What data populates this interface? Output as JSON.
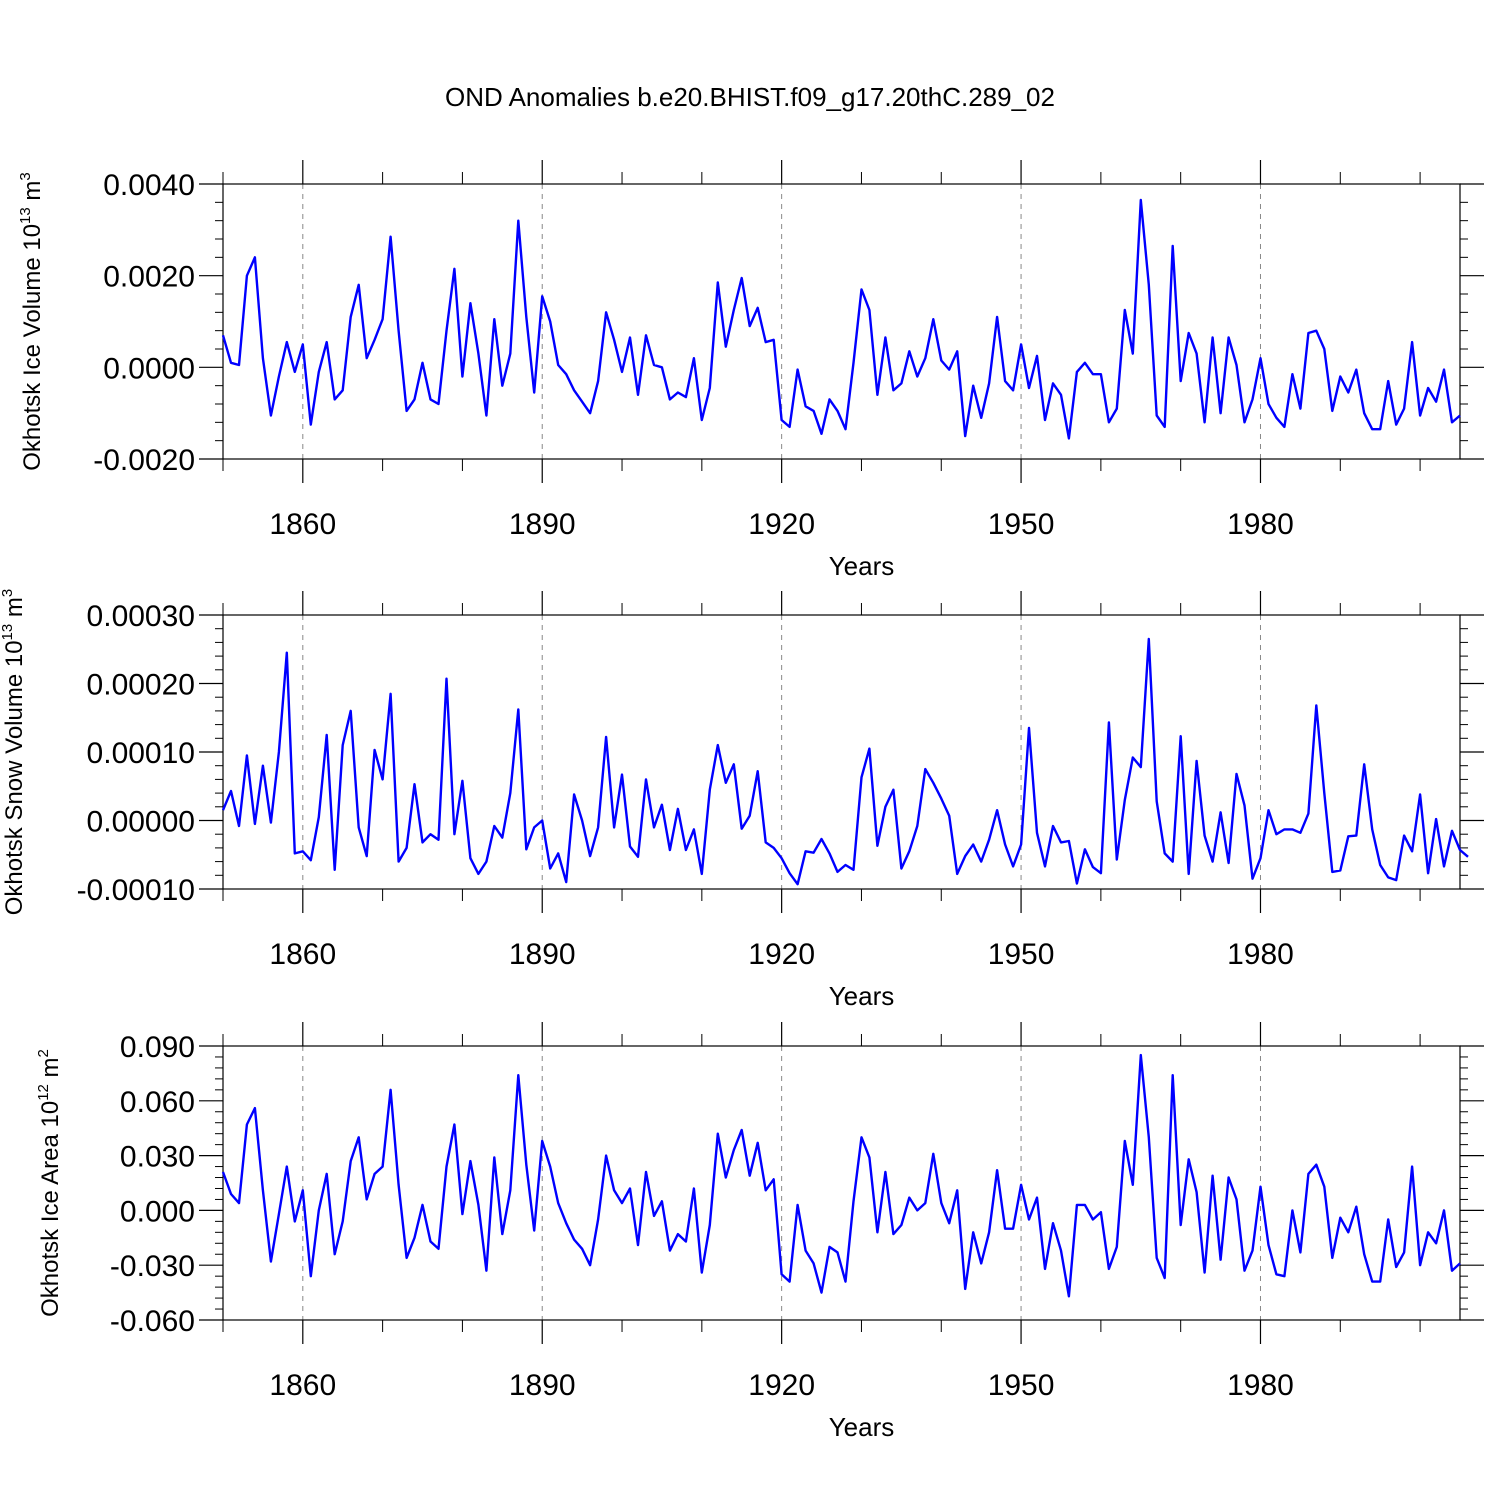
{
  "title": "OND Anomalies b.e20.BHIST.f09_g17.20thC.289_02",
  "colors": {
    "line": "#0000ff",
    "axis": "#000000",
    "grid": "#888888"
  },
  "chart_data": [
    {
      "type": "line",
      "title": "",
      "xlabel": "Years",
      "ylabel_main": "Okhotsk Ice Volume 10",
      "ylabel_exp": "13",
      "ylabel_unit": " m",
      "ylabel_unit_exp": "3",
      "xlim": [
        1850,
        2005
      ],
      "ylim": [
        -0.002,
        0.004
      ],
      "yticks": [
        -0.002,
        0.0,
        0.002,
        0.004
      ],
      "yticklabels": [
        "-0.0020",
        "0.0000",
        "0.0020",
        "0.0040"
      ],
      "xticks": [
        1860,
        1890,
        1920,
        1950,
        1980
      ],
      "xticklabels": [
        "1860",
        "1890",
        "1920",
        "1950",
        "1980"
      ],
      "x_start": 1850,
      "series": [
        {
          "name": "Okhotsk Ice Volume",
          "values": [
            0.0007,
            0.0001,
            5e-05,
            0.002,
            0.0024,
            0.0002,
            -0.00105,
            -0.0002,
            0.00055,
            -0.0001,
            0.0005,
            -0.00125,
            -0.0001,
            0.00055,
            -0.0007,
            -0.0005,
            0.0011,
            0.0018,
            0.0002,
            0.0006,
            0.00105,
            0.00285,
            0.0008,
            -0.00095,
            -0.0007,
            0.0001,
            -0.0007,
            -0.0008,
            0.0008,
            0.00215,
            -0.0002,
            0.0014,
            0.0003,
            -0.00105,
            0.00105,
            -0.0004,
            0.0003,
            0.0032,
            0.0011,
            -0.00055,
            0.00155,
            0.001,
            5e-05,
            -0.00015,
            -0.0005,
            -0.00075,
            -0.001,
            -0.0003,
            0.0012,
            0.0006,
            -0.0001,
            0.00065,
            -0.0006,
            0.0007,
            5e-05,
            0.0,
            -0.0007,
            -0.00055,
            -0.00065,
            0.0002,
            -0.00115,
            -0.00045,
            0.00185,
            0.00045,
            0.00125,
            0.00195,
            0.0009,
            0.0013,
            0.00055,
            0.0006,
            -0.00115,
            -0.0013,
            -5e-05,
            -0.00085,
            -0.00095,
            -0.00145,
            -0.0007,
            -0.00095,
            -0.00135,
            0.0001,
            0.0017,
            0.00125,
            -0.0006,
            0.00065,
            -0.0005,
            -0.00035,
            0.00035,
            -0.0002,
            0.0002,
            0.00105,
            0.00015,
            -5e-05,
            0.00035,
            -0.0015,
            -0.0004,
            -0.0011,
            -0.00035,
            0.0011,
            -0.0003,
            -0.0005,
            0.0005,
            -0.00045,
            0.00025,
            -0.00115,
            -0.00035,
            -0.0006,
            -0.00155,
            -0.0001,
            0.0001,
            -0.00015,
            -0.00015,
            -0.0012,
            -0.0009,
            0.00125,
            0.0003,
            0.00365,
            0.0018,
            -0.00105,
            -0.0013,
            0.00265,
            -0.0003,
            0.00075,
            0.0003,
            -0.0012,
            0.00065,
            -0.001,
            0.00065,
            5e-05,
            -0.0012,
            -0.0007,
            0.0002,
            -0.0008,
            -0.0011,
            -0.0013,
            -0.00015,
            -0.0009,
            0.00075,
            0.0008,
            0.0004,
            -0.00095,
            -0.0002,
            -0.00055,
            -5e-05,
            -0.001,
            -0.00135,
            -0.00135,
            -0.0003,
            -0.00125,
            -0.0009,
            0.00055,
            -0.00105,
            -0.00045,
            -0.00075,
            -5e-05,
            -0.0012,
            -0.00105
          ]
        }
      ]
    },
    {
      "type": "line",
      "title": "",
      "xlabel": "Years",
      "ylabel_main": "Okhotsk Snow Volume 10",
      "ylabel_exp": "13",
      "ylabel_unit": " m",
      "ylabel_unit_exp": "3",
      "xlim": [
        1850,
        2005
      ],
      "ylim": [
        -0.0001,
        0.0003
      ],
      "yticks": [
        -0.0001,
        0.0,
        0.0001,
        0.0002,
        0.0003
      ],
      "yticklabels": [
        "-0.00010",
        "0.00000",
        "0.00010",
        "0.00020",
        "0.00030"
      ],
      "xticks": [
        1860,
        1890,
        1920,
        1950,
        1980
      ],
      "xticklabels": [
        "1860",
        "1890",
        "1920",
        "1950",
        "1980"
      ],
      "x_start": 1850,
      "series": [
        {
          "name": "Okhotsk Snow Volume",
          "values": [
            1.5e-05,
            4.3e-05,
            -8e-06,
            9.5e-05,
            -5e-06,
            8e-05,
            -3e-06,
            0.0001,
            0.000245,
            -4.8e-05,
            -4.5e-05,
            -5.8e-05,
            5e-06,
            0.000125,
            -7.2e-05,
            0.00011,
            0.00016,
            -1e-05,
            -5.2e-05,
            0.000103,
            6e-05,
            0.000185,
            -6e-05,
            -4e-05,
            5.3e-05,
            -3.2e-05,
            -2e-05,
            -2.8e-05,
            0.000207,
            -2e-05,
            5.8e-05,
            -5.5e-05,
            -7.8e-05,
            -6e-05,
            -8e-06,
            -2.5e-05,
            4e-05,
            0.000162,
            -4.2e-05,
            -1e-05,
            0.0,
            -7e-05,
            -4.8e-05,
            -9e-05,
            3.8e-05,
            0.0,
            -5.2e-05,
            -1e-05,
            0.000122,
            -1e-05,
            6.7e-05,
            -3.8e-05,
            -5.3e-05,
            6e-05,
            -1e-05,
            2.3e-05,
            -4.3e-05,
            1.7e-05,
            -4.3e-05,
            -1.3e-05,
            -7.8e-05,
            4.5e-05,
            0.00011,
            5.5e-05,
            8.2e-05,
            -1.2e-05,
            7e-06,
            7.2e-05,
            -3.2e-05,
            -4e-05,
            -5.5e-05,
            -7.7e-05,
            -9.3e-05,
            -4.5e-05,
            -4.7e-05,
            -2.7e-05,
            -4.8e-05,
            -7.5e-05,
            -6.5e-05,
            -7.2e-05,
            6.3e-05,
            0.000105,
            -3.7e-05,
            2e-05,
            4.5e-05,
            -7e-05,
            -4.5e-05,
            -8e-06,
            7.5e-05,
            5.5e-05,
            3.2e-05,
            7e-06,
            -7.8e-05,
            -5.2e-05,
            -3.5e-05,
            -6e-05,
            -2.8e-05,
            1.5e-05,
            -3.5e-05,
            -6.7e-05,
            -3.5e-05,
            0.000135,
            -1.8e-05,
            -6.7e-05,
            -8e-06,
            -3.2e-05,
            -3e-05,
            -9.2e-05,
            -4.2e-05,
            -6.8e-05,
            -7.7e-05,
            0.000143,
            -5.7e-05,
            3e-05,
            9.2e-05,
            7.8e-05,
            0.000265,
            2.8e-05,
            -4.8e-05,
            -6e-05,
            0.000123,
            -7.8e-05,
            8.7e-05,
            -2.2e-05,
            -6e-05,
            1.2e-05,
            -6.2e-05,
            6.8e-05,
            2.2e-05,
            -8.5e-05,
            -5.5e-05,
            1.5e-05,
            -2e-05,
            -1.3e-05,
            -1.3e-05,
            -1.8e-05,
            1e-05,
            0.000168,
            4e-05,
            -7.5e-05,
            -7.3e-05,
            -2.3e-05,
            -2.2e-05,
            8.2e-05,
            -1.3e-05,
            -6.5e-05,
            -8.3e-05,
            -8.7e-05,
            -2.2e-05,
            -4.5e-05,
            3.8e-05,
            -7.7e-05,
            2e-06,
            -6.7e-05,
            -1.5e-05,
            -4.3e-05,
            -5.3e-05
          ]
        }
      ]
    },
    {
      "type": "line",
      "title": "",
      "xlabel": "Years",
      "ylabel_main": "Okhotsk Ice Area 10",
      "ylabel_exp": "12",
      "ylabel_unit": " m",
      "ylabel_unit_exp": "2",
      "xlim": [
        1850,
        2005
      ],
      "ylim": [
        -0.06,
        0.09
      ],
      "yticks": [
        -0.06,
        -0.03,
        0.0,
        0.03,
        0.06,
        0.09
      ],
      "yticklabels": [
        "-0.060",
        "-0.030",
        "0.000",
        "0.030",
        "0.060",
        "0.090"
      ],
      "xticks": [
        1860,
        1890,
        1920,
        1950,
        1980
      ],
      "xticklabels": [
        "1860",
        "1890",
        "1920",
        "1950",
        "1980"
      ],
      "x_start": 1850,
      "series": [
        {
          "name": "Okhotsk Ice Area",
          "values": [
            0.021,
            0.009,
            0.004,
            0.047,
            0.056,
            0.011,
            -0.028,
            -0.002,
            0.024,
            -0.006,
            0.011,
            -0.036,
            0.0,
            0.02,
            -0.024,
            -0.006,
            0.027,
            0.04,
            0.006,
            0.02,
            0.024,
            0.066,
            0.014,
            -0.026,
            -0.015,
            0.003,
            -0.017,
            -0.021,
            0.024,
            0.047,
            -0.002,
            0.027,
            0.003,
            -0.033,
            0.029,
            -0.013,
            0.011,
            0.074,
            0.025,
            -0.011,
            0.038,
            0.024,
            0.004,
            -0.007,
            -0.016,
            -0.021,
            -0.03,
            -0.005,
            0.03,
            0.011,
            0.004,
            0.012,
            -0.019,
            0.021,
            -0.003,
            0.005,
            -0.022,
            -0.013,
            -0.017,
            0.012,
            -0.034,
            -0.008,
            0.042,
            0.018,
            0.033,
            0.044,
            0.019,
            0.037,
            0.011,
            0.017,
            -0.035,
            -0.039,
            0.003,
            -0.022,
            -0.029,
            -0.045,
            -0.02,
            -0.023,
            -0.039,
            0.005,
            0.04,
            0.029,
            -0.012,
            0.021,
            -0.013,
            -0.008,
            0.007,
            0.0,
            0.004,
            0.031,
            0.004,
            -0.007,
            0.011,
            -0.043,
            -0.012,
            -0.029,
            -0.012,
            0.022,
            -0.01,
            -0.01,
            0.014,
            -0.005,
            0.007,
            -0.032,
            -0.007,
            -0.022,
            -0.047,
            0.003,
            0.003,
            -0.005,
            -0.001,
            -0.032,
            -0.02,
            0.038,
            0.014,
            0.085,
            0.04,
            -0.026,
            -0.037,
            0.074,
            -0.008,
            0.028,
            0.01,
            -0.034,
            0.019,
            -0.027,
            0.018,
            0.006,
            -0.033,
            -0.022,
            0.013,
            -0.019,
            -0.035,
            -0.036,
            0.0,
            -0.023,
            0.02,
            0.025,
            0.013,
            -0.026,
            -0.004,
            -0.012,
            0.002,
            -0.024,
            -0.039,
            -0.039,
            -0.005,
            -0.031,
            -0.023,
            0.024,
            -0.03,
            -0.012,
            -0.018,
            0.0,
            -0.033,
            -0.029
          ]
        }
      ]
    }
  ]
}
